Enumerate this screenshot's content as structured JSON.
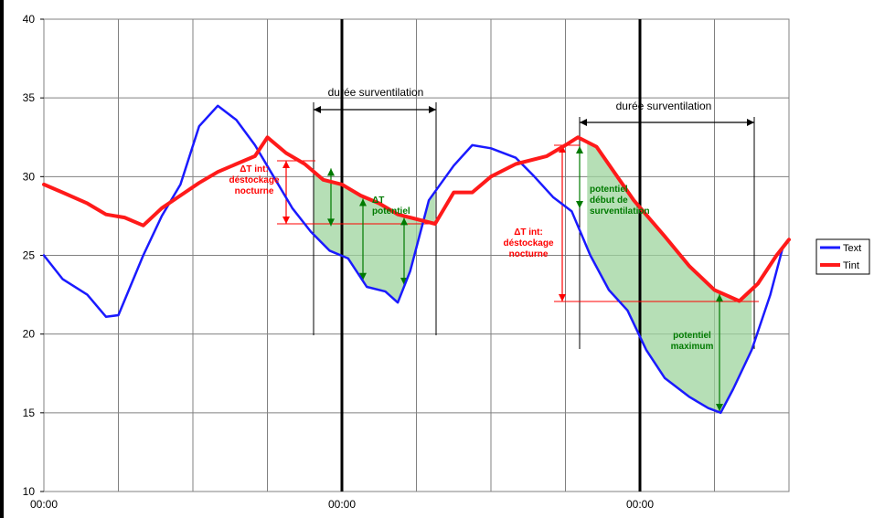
{
  "chart_data": {
    "type": "line",
    "ylim": [
      10,
      40
    ],
    "xlim": [
      0,
      120
    ],
    "yticks": [
      10,
      15,
      20,
      25,
      30,
      35,
      40
    ],
    "ytick_labels": [
      "10",
      "15",
      "20",
      "25",
      "30",
      "35",
      "40"
    ],
    "xticks": [
      0,
      48,
      96
    ],
    "xtick_labels": [
      "00:00",
      "00:00",
      "00:00"
    ],
    "x_gridlines": [
      0,
      12,
      24,
      36,
      48,
      60,
      72,
      84,
      96,
      108,
      120
    ],
    "grid": true,
    "legend_position": "right",
    "colors": {
      "Text": "#1a1aff",
      "Tint": "#ff1a1a",
      "shade": "#9ed49e",
      "green": "#007a00",
      "red": "#ff0000"
    },
    "series": [
      {
        "name": "Text",
        "color": "#1a1aff",
        "points": [
          [
            0,
            25
          ],
          [
            3,
            23.5
          ],
          [
            7,
            22.5
          ],
          [
            10,
            21.1
          ],
          [
            12,
            21.2
          ],
          [
            16,
            25
          ],
          [
            19,
            27.5
          ],
          [
            22,
            29.5
          ],
          [
            25,
            33.2
          ],
          [
            28,
            34.5
          ],
          [
            31,
            33.6
          ],
          [
            34,
            32
          ],
          [
            37,
            30
          ],
          [
            40,
            28
          ],
          [
            43,
            26.5
          ],
          [
            46,
            25.3
          ],
          [
            49,
            24.8
          ],
          [
            52,
            23
          ],
          [
            55,
            22.7
          ],
          [
            57,
            22
          ],
          [
            59,
            24
          ],
          [
            62,
            28.5
          ],
          [
            66,
            30.7
          ],
          [
            69,
            32
          ],
          [
            72,
            31.8
          ],
          [
            76,
            31.2
          ],
          [
            79,
            30
          ],
          [
            82,
            28.7
          ],
          [
            85,
            27.8
          ],
          [
            88,
            25
          ],
          [
            91,
            22.8
          ],
          [
            94,
            21.5
          ],
          [
            97,
            19
          ],
          [
            100,
            17.2
          ],
          [
            104,
            16
          ],
          [
            107,
            15.3
          ],
          [
            109,
            15
          ],
          [
            111,
            16.5
          ],
          [
            114,
            19
          ],
          [
            117,
            22.5
          ],
          [
            119,
            25.5
          ]
        ]
      },
      {
        "name": "Tint",
        "color": "#ff1a1a",
        "points": [
          [
            0,
            29.5
          ],
          [
            3,
            29
          ],
          [
            7,
            28.3
          ],
          [
            10,
            27.6
          ],
          [
            13,
            27.4
          ],
          [
            16,
            26.9
          ],
          [
            19,
            28
          ],
          [
            22,
            28.8
          ],
          [
            25,
            29.6
          ],
          [
            28,
            30.3
          ],
          [
            31,
            30.8
          ],
          [
            34,
            31.3
          ],
          [
            36,
            32.5
          ],
          [
            39,
            31.5
          ],
          [
            42,
            30.8
          ],
          [
            45,
            29.8
          ],
          [
            48,
            29.5
          ],
          [
            51,
            28.8
          ],
          [
            54,
            28.3
          ],
          [
            57,
            27.6
          ],
          [
            63,
            27
          ],
          [
            66,
            29
          ],
          [
            69,
            29
          ],
          [
            72,
            30
          ],
          [
            76,
            30.8
          ],
          [
            81,
            31.3
          ],
          [
            84,
            32
          ],
          [
            86,
            32.5
          ],
          [
            89,
            31.9
          ],
          [
            92,
            30.2
          ],
          [
            95,
            28.5
          ],
          [
            100,
            26.2
          ],
          [
            104,
            24.3
          ],
          [
            108,
            22.8
          ],
          [
            112,
            22.1
          ],
          [
            115,
            23.2
          ],
          [
            118,
            25
          ],
          [
            120,
            26
          ]
        ]
      }
    ],
    "legend": [
      "Text",
      "Tint"
    ],
    "annotations": {
      "duree1": "durée surventilation",
      "duree2": "durée surventilation",
      "dt1": [
        "ΔT int:",
        "déstockage",
        "nocturne"
      ],
      "dt2": [
        "ΔT int:",
        "déstockage",
        "nocturne"
      ],
      "pot1": [
        "ΔT",
        "potentiel"
      ],
      "pot2": [
        "potentiel",
        "début de",
        "surventilation"
      ],
      "pot3": [
        "potentiel",
        "maximum"
      ]
    }
  }
}
